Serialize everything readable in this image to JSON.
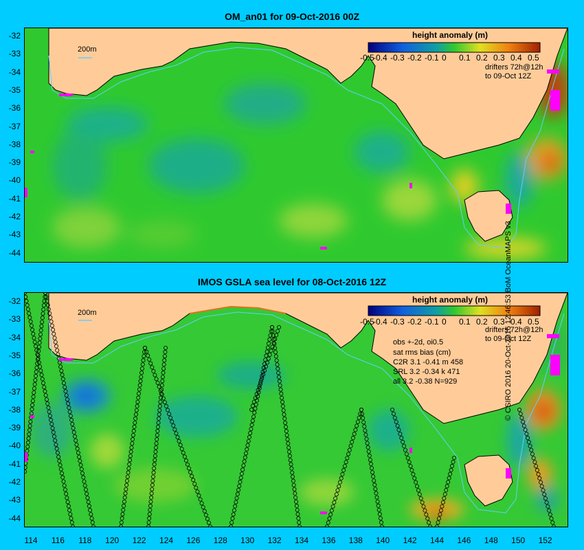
{
  "panels": [
    {
      "title": "OM_an01 for 09-Oct-2016 00Z",
      "colorbar": {
        "title": "height anomaly (m)",
        "labels": [
          "-0.5",
          "-0.4",
          "-0.3",
          "-0.2",
          "-0.1",
          "0",
          "0.1",
          "0.2",
          "0.3",
          "0.4",
          "0.5"
        ]
      },
      "notes": [
        "drifters 72h@12h",
        "to 09-Oct 12Z"
      ],
      "scale_label": "200m",
      "y_ticks": [
        "-32",
        "-33",
        "-34",
        "-35",
        "-36",
        "-37",
        "-38",
        "-39",
        "-40",
        "-41",
        "-42",
        "-43",
        "-44"
      ]
    },
    {
      "title": "IMOS GSLA sea level  for 08-Oct-2016 12Z",
      "colorbar": {
        "title": "height anomaly (m)",
        "labels": [
          "-0.5",
          "-0.4",
          "-0.3",
          "-0.2",
          "-0.1",
          "0",
          "0.1",
          "0.2",
          "0.3",
          "0.4",
          "0.5"
        ]
      },
      "notes": [
        "drifters 72h@12h",
        "to 09-Oct 12Z"
      ],
      "scale_label": "200m",
      "stats": [
        "obs +-2d, oi0.5",
        "sat rms bias (cm)",
        "C2R   3.1 -0.41 m 458",
        "SRL    3.2 -0.34 k 471",
        "all    3.2 -0.38 N=929"
      ],
      "y_ticks": [
        "-32",
        "-33",
        "-34",
        "-35",
        "-36",
        "-37",
        "-38",
        "-39",
        "-40",
        "-41",
        "-42",
        "-43",
        "-44"
      ]
    }
  ],
  "x_ticks": [
    "114",
    "116",
    "118",
    "120",
    "122",
    "124",
    "126",
    "128",
    "130",
    "132",
    "134",
    "136",
    "138",
    "140",
    "142",
    "144",
    "146",
    "148",
    "150",
    "152"
  ],
  "credit": "© CSIRO 2016  20-Oct-2016 12:46:53 BoM OceanMAPS v3",
  "colors": {
    "background": "#00ccff",
    "ocean": "#33cc33",
    "land": "#ffcc99",
    "drifters": "#ff00ff",
    "isobath": "#66ccff"
  }
}
